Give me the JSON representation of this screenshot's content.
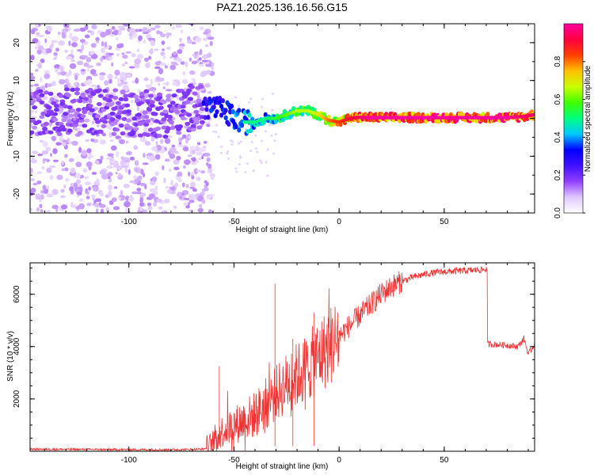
{
  "title": "PAZ1.2025.136.16.56.G15",
  "chart_data": [
    {
      "type": "heatmap",
      "title": "PAZ1.2025.136.16.56.G15",
      "xlabel": "Height of straight line (km)",
      "ylabel": "Frequency (Hz)",
      "xlim": [
        -147,
        93
      ],
      "ylim": [
        -25,
        25
      ],
      "xticks": [
        -100,
        -50,
        0,
        50
      ],
      "yticks": [
        -20,
        -10,
        0,
        10,
        20
      ],
      "colorbar": {
        "label": "Normalized spectral amplitude",
        "range": [
          0,
          1
        ],
        "ticks": [
          0.0,
          0.2,
          0.4,
          0.6,
          0.8
        ],
        "tick_labels": [
          "0.0",
          "0.2",
          "0.4",
          "0.6",
          "0.8"
        ],
        "colormap": [
          "#ffffff",
          "#e0c8ff",
          "#9040ff",
          "#4010ff",
          "#0000ff",
          "#00c8ff",
          "#00ff80",
          "#40ff00",
          "#c8ff00",
          "#ffc000",
          "#ff4000",
          "#ff0040",
          "#ff00a0"
        ]
      },
      "ridge": {
        "x": [
          -147,
          -120,
          -100,
          -80,
          -70,
          -60,
          -55,
          -50,
          -45,
          -40,
          -35,
          -30,
          -25,
          -20,
          -15,
          -10,
          -5,
          0,
          5,
          10,
          15,
          20,
          30,
          40,
          50,
          60,
          70,
          80,
          88,
          93
        ],
        "freq": [
          1.5,
          2,
          1.5,
          1,
          3,
          3,
          2,
          0,
          -1,
          -1,
          0,
          0,
          1,
          2,
          2,
          1,
          -0.5,
          -1,
          0,
          0.3,
          0.2,
          0.2,
          0.2,
          0.2,
          0.2,
          0.2,
          0.2,
          0.2,
          0.5,
          1
        ],
        "amplitude": [
          0.15,
          0.15,
          0.15,
          0.15,
          0.3,
          0.35,
          0.35,
          0.4,
          0.45,
          0.45,
          0.45,
          0.5,
          0.55,
          0.6,
          0.6,
          0.65,
          0.75,
          0.8,
          0.85,
          0.9,
          0.95,
          0.95,
          0.95,
          0.95,
          0.95,
          0.95,
          0.95,
          0.95,
          0.9,
          0.9
        ]
      }
    },
    {
      "type": "line",
      "xlabel": "Height of straight line (km)",
      "ylabel": "SNR (10 * v/v)",
      "xlim": [
        -147,
        93
      ],
      "ylim": [
        0,
        7200
      ],
      "xticks": [
        -100,
        -50,
        0,
        50
      ],
      "yticks": [
        2000,
        4000,
        6000
      ],
      "color": "#ee3333",
      "series": [
        {
          "name": "SNR",
          "x": [
            -147,
            -120,
            -100,
            -80,
            -70,
            -65,
            -62,
            -60,
            -58,
            -55,
            -50,
            -45,
            -40,
            -35,
            -30,
            -25,
            -20,
            -15,
            -10,
            -5,
            0,
            5,
            10,
            15,
            20,
            25,
            30,
            35,
            40,
            45,
            50,
            55,
            60,
            65,
            70,
            70.5,
            75,
            80,
            85,
            88,
            90,
            93
          ],
          "y": [
            80,
            70,
            60,
            60,
            70,
            80,
            150,
            300,
            600,
            800,
            1000,
            1200,
            1400,
            1800,
            2200,
            2600,
            2900,
            3200,
            3600,
            4000,
            4400,
            4800,
            5200,
            5600,
            6000,
            6300,
            6500,
            6650,
            6750,
            6820,
            6860,
            6880,
            6900,
            6920,
            6950,
            4100,
            4080,
            4050,
            4000,
            4300,
            3700,
            4100
          ]
        }
      ]
    }
  ]
}
